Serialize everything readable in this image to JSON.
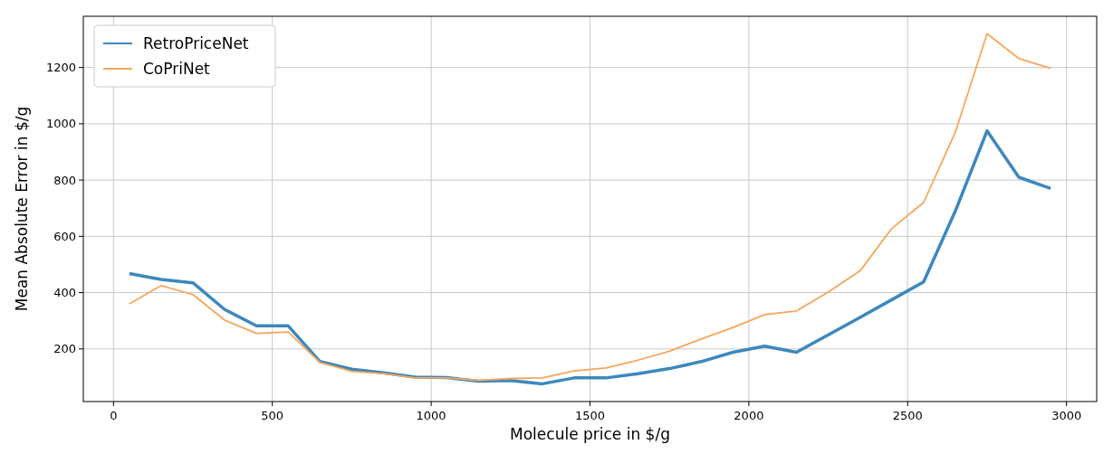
{
  "chart_data": {
    "type": "line",
    "xlabel": "Molecule price in $/g",
    "ylabel": "Mean Absolute Error in $/g",
    "x": [
      50,
      150,
      250,
      350,
      450,
      550,
      650,
      750,
      850,
      950,
      1050,
      1150,
      1250,
      1350,
      1450,
      1550,
      1650,
      1750,
      1850,
      1950,
      2050,
      2150,
      2250,
      2350,
      2450,
      2550,
      2650,
      2750,
      2850,
      2950
    ],
    "series": [
      {
        "name": "RetroPriceNet",
        "color": "#3c88bd",
        "values": [
          468,
          447,
          435,
          340,
          282,
          282,
          155,
          128,
          115,
          100,
          98,
          85,
          88,
          76,
          97,
          97,
          112,
          130,
          155,
          188,
          210,
          188,
          250,
          312,
          375,
          438,
          690,
          975,
          810,
          770
        ]
      },
      {
        "name": "CoPriNet",
        "color": "#f7a65a",
        "values": [
          360,
          425,
          393,
          302,
          255,
          260,
          152,
          120,
          112,
          97,
          97,
          88,
          95,
          97,
          122,
          132,
          160,
          192,
          235,
          276,
          322,
          335,
          402,
          477,
          628,
          720,
          970,
          1320,
          1232,
          1197
        ]
      }
    ],
    "xlim": [
      -95,
      3095
    ],
    "xticks": [
      0,
      500,
      1000,
      1500,
      2000,
      2500,
      3000
    ],
    "ylim": [
      13,
      1382
    ],
    "yticks": [
      200,
      400,
      600,
      800,
      1000,
      1200
    ],
    "grid": true,
    "legend": "top left"
  }
}
